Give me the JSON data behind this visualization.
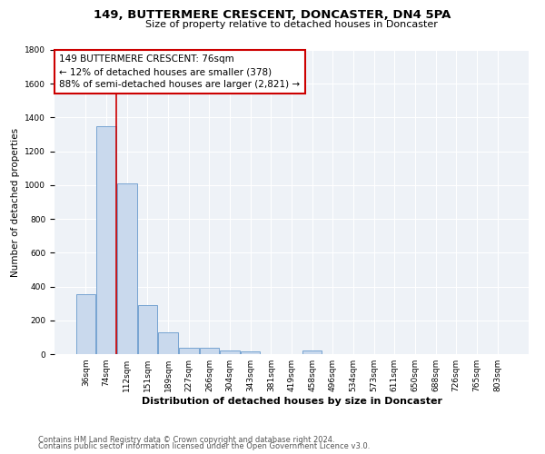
{
  "title": "149, BUTTERMERE CRESCENT, DONCASTER, DN4 5PA",
  "subtitle": "Size of property relative to detached houses in Doncaster",
  "xlabel": "Distribution of detached houses by size in Doncaster",
  "ylabel": "Number of detached properties",
  "bin_labels": [
    "36sqm",
    "74sqm",
    "112sqm",
    "151sqm",
    "189sqm",
    "227sqm",
    "266sqm",
    "304sqm",
    "343sqm",
    "381sqm",
    "419sqm",
    "458sqm",
    "496sqm",
    "534sqm",
    "573sqm",
    "611sqm",
    "650sqm",
    "688sqm",
    "726sqm",
    "765sqm",
    "803sqm"
  ],
  "bar_heights": [
    355,
    1350,
    1010,
    290,
    130,
    40,
    35,
    22,
    15,
    0,
    0,
    20,
    0,
    0,
    0,
    0,
    0,
    0,
    0,
    0,
    0
  ],
  "bar_color": "#c9d9ed",
  "bar_edge_color": "#6699cc",
  "vline_color": "#cc0000",
  "vline_x": 1.0,
  "annotation_line1": "149 BUTTERMERE CRESCENT: 76sqm",
  "annotation_line2": "← 12% of detached houses are smaller (378)",
  "annotation_line3": "88% of semi-detached houses are larger (2,821) →",
  "ylim": [
    0,
    1800
  ],
  "yticks": [
    0,
    200,
    400,
    600,
    800,
    1000,
    1200,
    1400,
    1600,
    1800
  ],
  "background_color": "#eef2f7",
  "grid_color": "#ffffff",
  "footnote1": "Contains HM Land Registry data © Crown copyright and database right 2024.",
  "footnote2": "Contains public sector information licensed under the Open Government Licence v3.0.",
  "title_fontsize": 9.5,
  "subtitle_fontsize": 8,
  "xlabel_fontsize": 8,
  "ylabel_fontsize": 7.5,
  "tick_fontsize": 6.5,
  "annotation_fontsize": 7.5,
  "footnote_fontsize": 6
}
